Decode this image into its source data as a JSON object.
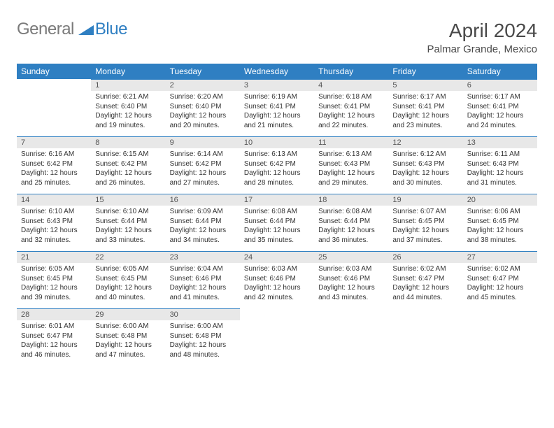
{
  "logo": {
    "text_gray": "General",
    "text_blue": "Blue",
    "gray_color": "#7a7a7a",
    "blue_color": "#2f7fc2"
  },
  "header": {
    "title": "April 2024",
    "location": "Palmar Grande, Mexico"
  },
  "style": {
    "header_bg": "#2f7fc2",
    "header_text": "#ffffff",
    "daynum_bg": "#e8e8e8",
    "daynum_text": "#555555",
    "body_text": "#333333",
    "row_border": "#2f7fc2",
    "title_fontsize": 28,
    "location_fontsize": 15,
    "dayhead_fontsize": 12,
    "cell_fontsize": 10,
    "daynum_fontsize": 11
  },
  "dayheads": [
    "Sunday",
    "Monday",
    "Tuesday",
    "Wednesday",
    "Thursday",
    "Friday",
    "Saturday"
  ],
  "weeks": [
    [
      null,
      {
        "n": "1",
        "sr": "Sunrise: 6:21 AM",
        "ss": "Sunset: 6:40 PM",
        "dl": "Daylight: 12 hours and 19 minutes."
      },
      {
        "n": "2",
        "sr": "Sunrise: 6:20 AM",
        "ss": "Sunset: 6:40 PM",
        "dl": "Daylight: 12 hours and 20 minutes."
      },
      {
        "n": "3",
        "sr": "Sunrise: 6:19 AM",
        "ss": "Sunset: 6:41 PM",
        "dl": "Daylight: 12 hours and 21 minutes."
      },
      {
        "n": "4",
        "sr": "Sunrise: 6:18 AM",
        "ss": "Sunset: 6:41 PM",
        "dl": "Daylight: 12 hours and 22 minutes."
      },
      {
        "n": "5",
        "sr": "Sunrise: 6:17 AM",
        "ss": "Sunset: 6:41 PM",
        "dl": "Daylight: 12 hours and 23 minutes."
      },
      {
        "n": "6",
        "sr": "Sunrise: 6:17 AM",
        "ss": "Sunset: 6:41 PM",
        "dl": "Daylight: 12 hours and 24 minutes."
      }
    ],
    [
      {
        "n": "7",
        "sr": "Sunrise: 6:16 AM",
        "ss": "Sunset: 6:42 PM",
        "dl": "Daylight: 12 hours and 25 minutes."
      },
      {
        "n": "8",
        "sr": "Sunrise: 6:15 AM",
        "ss": "Sunset: 6:42 PM",
        "dl": "Daylight: 12 hours and 26 minutes."
      },
      {
        "n": "9",
        "sr": "Sunrise: 6:14 AM",
        "ss": "Sunset: 6:42 PM",
        "dl": "Daylight: 12 hours and 27 minutes."
      },
      {
        "n": "10",
        "sr": "Sunrise: 6:13 AM",
        "ss": "Sunset: 6:42 PM",
        "dl": "Daylight: 12 hours and 28 minutes."
      },
      {
        "n": "11",
        "sr": "Sunrise: 6:13 AM",
        "ss": "Sunset: 6:43 PM",
        "dl": "Daylight: 12 hours and 29 minutes."
      },
      {
        "n": "12",
        "sr": "Sunrise: 6:12 AM",
        "ss": "Sunset: 6:43 PM",
        "dl": "Daylight: 12 hours and 30 minutes."
      },
      {
        "n": "13",
        "sr": "Sunrise: 6:11 AM",
        "ss": "Sunset: 6:43 PM",
        "dl": "Daylight: 12 hours and 31 minutes."
      }
    ],
    [
      {
        "n": "14",
        "sr": "Sunrise: 6:10 AM",
        "ss": "Sunset: 6:43 PM",
        "dl": "Daylight: 12 hours and 32 minutes."
      },
      {
        "n": "15",
        "sr": "Sunrise: 6:10 AM",
        "ss": "Sunset: 6:44 PM",
        "dl": "Daylight: 12 hours and 33 minutes."
      },
      {
        "n": "16",
        "sr": "Sunrise: 6:09 AM",
        "ss": "Sunset: 6:44 PM",
        "dl": "Daylight: 12 hours and 34 minutes."
      },
      {
        "n": "17",
        "sr": "Sunrise: 6:08 AM",
        "ss": "Sunset: 6:44 PM",
        "dl": "Daylight: 12 hours and 35 minutes."
      },
      {
        "n": "18",
        "sr": "Sunrise: 6:08 AM",
        "ss": "Sunset: 6:44 PM",
        "dl": "Daylight: 12 hours and 36 minutes."
      },
      {
        "n": "19",
        "sr": "Sunrise: 6:07 AM",
        "ss": "Sunset: 6:45 PM",
        "dl": "Daylight: 12 hours and 37 minutes."
      },
      {
        "n": "20",
        "sr": "Sunrise: 6:06 AM",
        "ss": "Sunset: 6:45 PM",
        "dl": "Daylight: 12 hours and 38 minutes."
      }
    ],
    [
      {
        "n": "21",
        "sr": "Sunrise: 6:05 AM",
        "ss": "Sunset: 6:45 PM",
        "dl": "Daylight: 12 hours and 39 minutes."
      },
      {
        "n": "22",
        "sr": "Sunrise: 6:05 AM",
        "ss": "Sunset: 6:45 PM",
        "dl": "Daylight: 12 hours and 40 minutes."
      },
      {
        "n": "23",
        "sr": "Sunrise: 6:04 AM",
        "ss": "Sunset: 6:46 PM",
        "dl": "Daylight: 12 hours and 41 minutes."
      },
      {
        "n": "24",
        "sr": "Sunrise: 6:03 AM",
        "ss": "Sunset: 6:46 PM",
        "dl": "Daylight: 12 hours and 42 minutes."
      },
      {
        "n": "25",
        "sr": "Sunrise: 6:03 AM",
        "ss": "Sunset: 6:46 PM",
        "dl": "Daylight: 12 hours and 43 minutes."
      },
      {
        "n": "26",
        "sr": "Sunrise: 6:02 AM",
        "ss": "Sunset: 6:47 PM",
        "dl": "Daylight: 12 hours and 44 minutes."
      },
      {
        "n": "27",
        "sr": "Sunrise: 6:02 AM",
        "ss": "Sunset: 6:47 PM",
        "dl": "Daylight: 12 hours and 45 minutes."
      }
    ],
    [
      {
        "n": "28",
        "sr": "Sunrise: 6:01 AM",
        "ss": "Sunset: 6:47 PM",
        "dl": "Daylight: 12 hours and 46 minutes."
      },
      {
        "n": "29",
        "sr": "Sunrise: 6:00 AM",
        "ss": "Sunset: 6:48 PM",
        "dl": "Daylight: 12 hours and 47 minutes."
      },
      {
        "n": "30",
        "sr": "Sunrise: 6:00 AM",
        "ss": "Sunset: 6:48 PM",
        "dl": "Daylight: 12 hours and 48 minutes."
      },
      null,
      null,
      null,
      null
    ]
  ]
}
